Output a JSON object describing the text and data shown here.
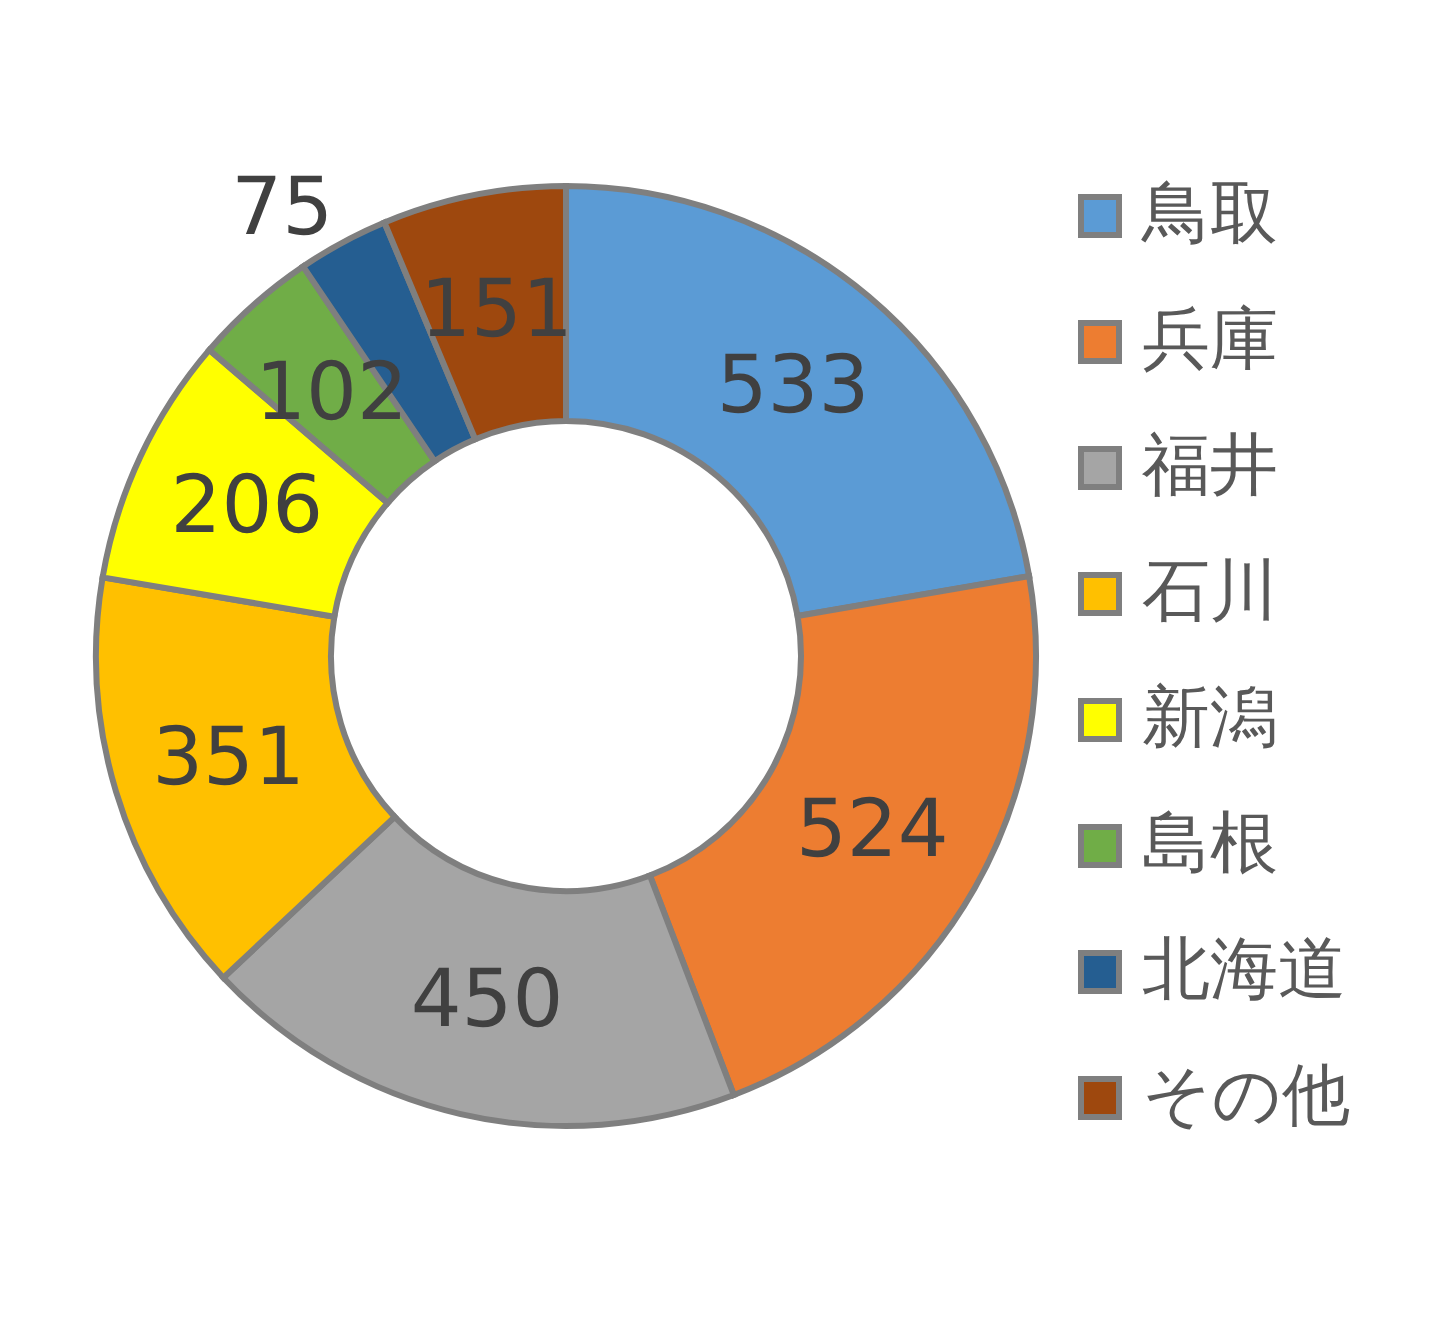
{
  "chart_data": {
    "type": "donut",
    "categories": [
      "鳥取",
      "兵庫",
      "福井",
      "石川",
      "新潟",
      "島根",
      "北海道",
      "その他"
    ],
    "values": [
      533,
      524,
      450,
      351,
      206,
      102,
      75,
      151
    ],
    "colors": [
      "#5b9bd5",
      "#ed7d31",
      "#a5a5a5",
      "#ffc000",
      "#ffff00",
      "#70ad47",
      "#255e91",
      "#9e480e"
    ],
    "data_labels": true,
    "legend": "right"
  }
}
